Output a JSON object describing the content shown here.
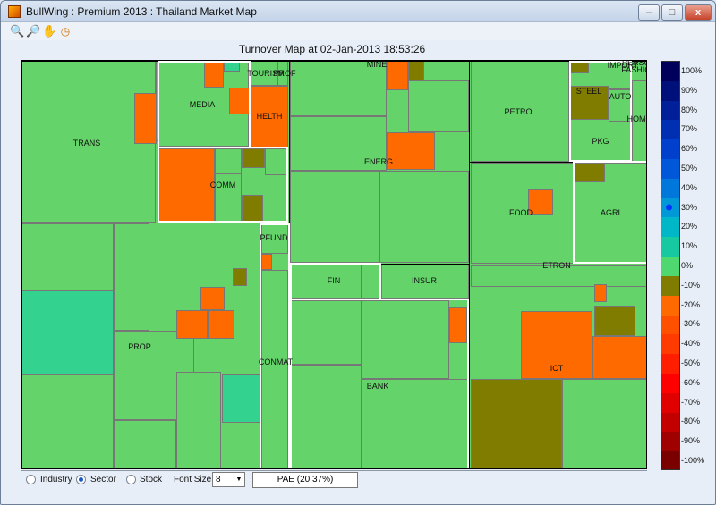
{
  "window": {
    "title": "BullWing : Premium 2013 : Thailand Market Map",
    "min_label": "–",
    "max_label": "□",
    "close_label": "x"
  },
  "toolbar": {
    "zoom_in_icon": "zoom-in-icon",
    "zoom_out_icon": "zoom-out-icon",
    "pan_icon": "hand-pan-icon",
    "refresh_icon": "clock-refresh-icon"
  },
  "plot": {
    "title": "Turnover Map at 02-Jan-2013 18:53:26"
  },
  "colors": {
    "up_light": "#64d36a",
    "flat": "#7f7c00",
    "down": "#ff6a00",
    "teal": "#33d38f"
  },
  "sector_labels": [
    "TRANS",
    "MEDIA",
    "TOURISM",
    "PROF",
    "HELTH",
    "COMM",
    "PROP",
    "PFUND",
    "CONMAT",
    "MINE",
    "ENERG",
    "FIN",
    "INSUR",
    "BANK",
    "PETRO",
    "STEEL",
    "AUTO",
    "IMPORT",
    "PERSON",
    "FASHION",
    "HOME",
    "PKG",
    "FOOD",
    "AGRI",
    "ETRON",
    "ICT"
  ],
  "legend": {
    "marker_value": "30%",
    "ticks": [
      "100%",
      "90%",
      "80%",
      "70%",
      "60%",
      "50%",
      "40%",
      "30%",
      "20%",
      "10%",
      "0%",
      "-10%",
      "-20%",
      "-30%",
      "-40%",
      "-50%",
      "-60%",
      "-70%",
      "-80%",
      "-90%",
      "-100%"
    ],
    "segment_colors": [
      "#00005b",
      "#00107a",
      "#001f99",
      "#002fb2",
      "#0040cc",
      "#0058d8",
      "#0078db",
      "#0098d6",
      "#00b7c7",
      "#16c9a0",
      "#4fd86f",
      "#7f7c00",
      "#ff6a00",
      "#ff5000",
      "#ff3b00",
      "#ff1f00",
      "#ff0000",
      "#e00000",
      "#c20000",
      "#9f0000",
      "#7a0000"
    ]
  },
  "controls": {
    "industry_label": "Industry",
    "sector_label": "Sector",
    "stock_label": "Stock",
    "font_size_label": "Font Size :",
    "font_size_value": "8",
    "selected_view": "Sector",
    "info_text": "PAE  (20.37%)"
  }
}
